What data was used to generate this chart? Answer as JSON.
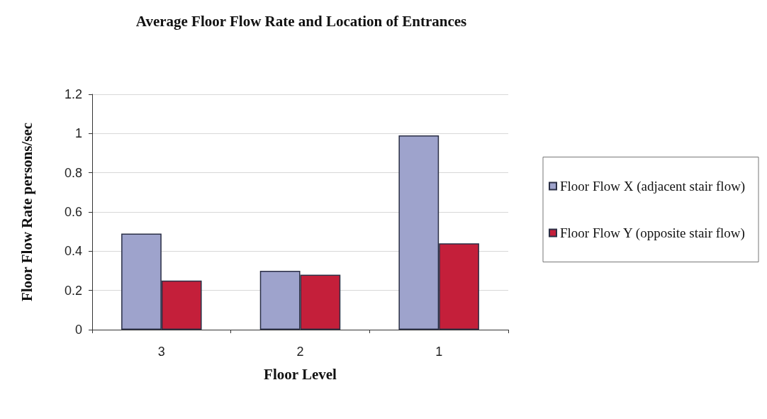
{
  "chart_data": {
    "type": "bar",
    "title": "Average Floor Flow Rate and Location of Entrances",
    "xlabel": "Floor Level",
    "ylabel": "Floor Flow Rate persons/sec",
    "categories": [
      "3",
      "2",
      "1"
    ],
    "series": [
      {
        "name": "Floor Flow X (adjacent stair flow)",
        "color": "#9ea3cc",
        "values": [
          0.49,
          0.3,
          0.99
        ]
      },
      {
        "name": "Floor Flow Y (opposite stair flow)",
        "color": "#c41f3a",
        "values": [
          0.25,
          0.28,
          0.44
        ]
      }
    ],
    "ylim": [
      0,
      1.2
    ],
    "yticks": [
      0,
      0.2,
      0.4,
      0.6,
      0.8,
      1,
      1.2
    ],
    "grid": "y",
    "legend": "right"
  }
}
